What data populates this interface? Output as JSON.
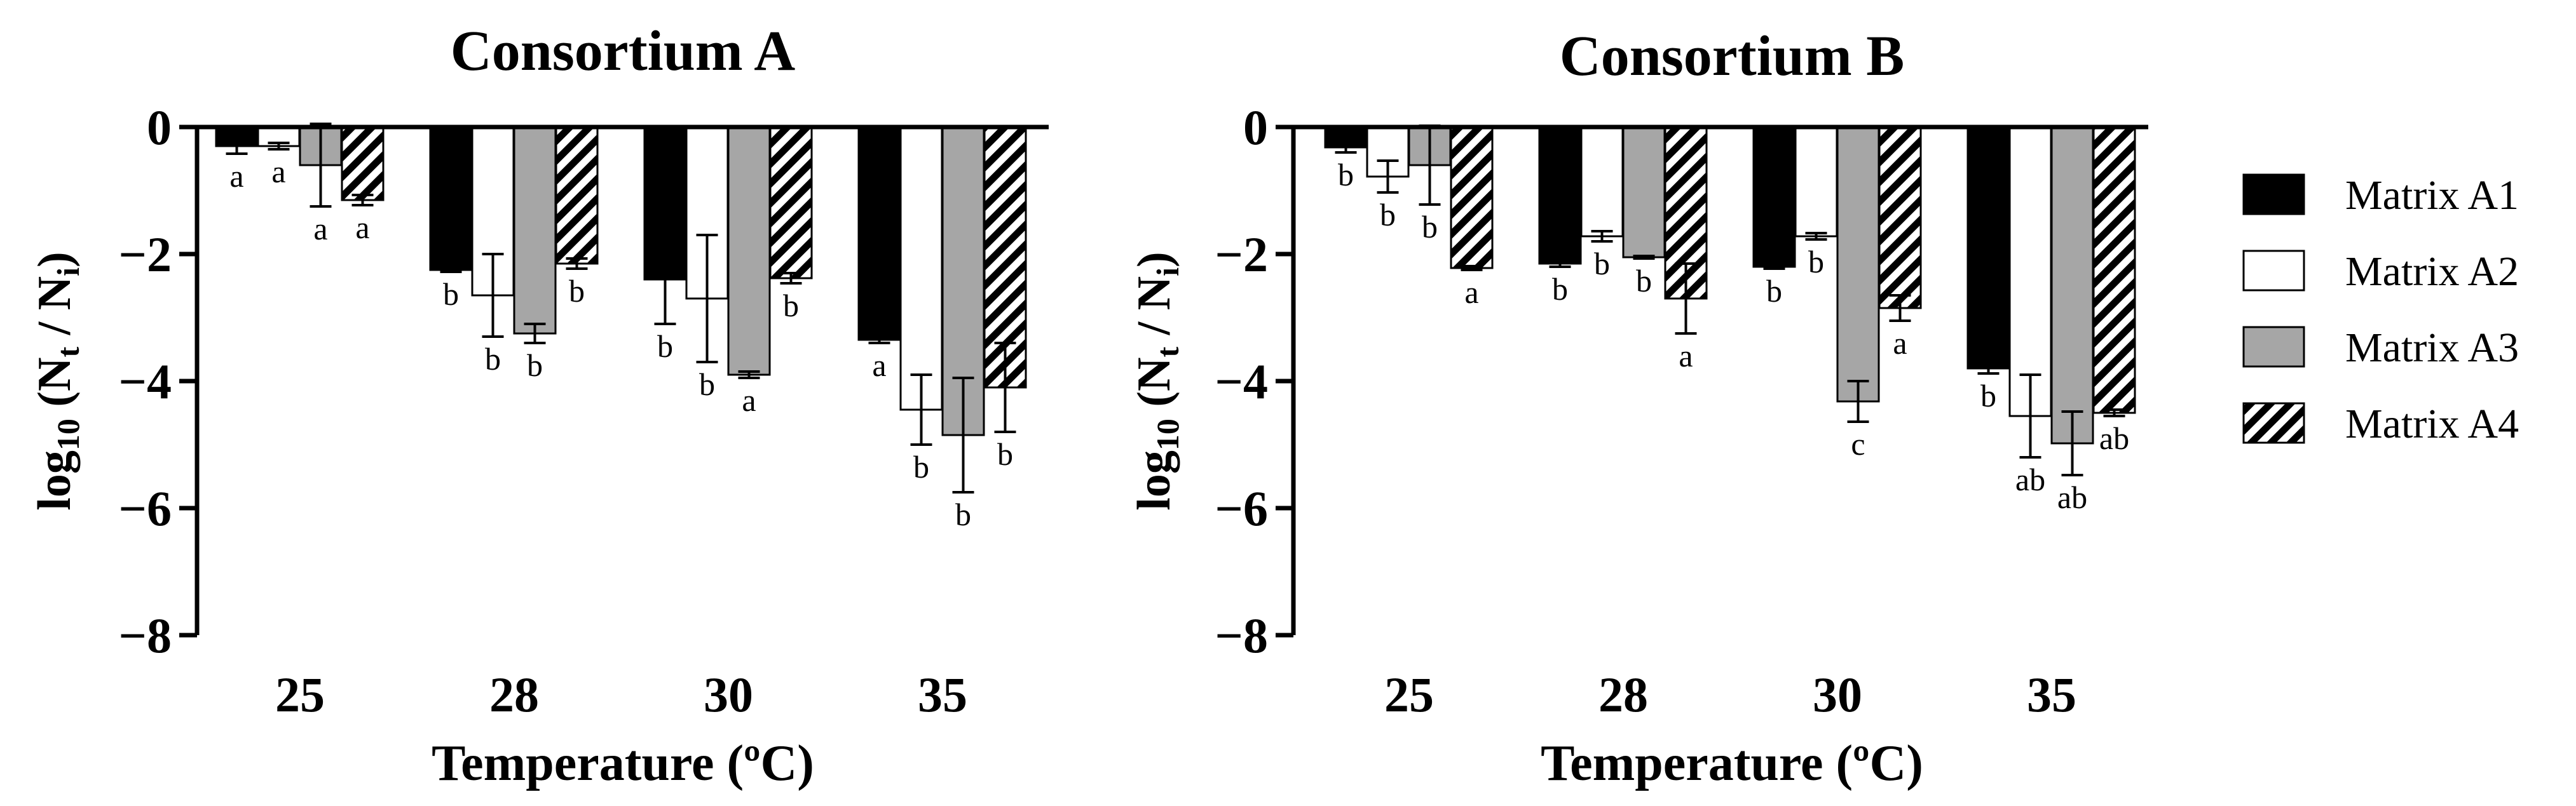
{
  "figure": {
    "legend": [
      {
        "label": "Matrix A1",
        "fill": "black"
      },
      {
        "label": "Matrix A2",
        "fill": "white"
      },
      {
        "label": "Matrix A3",
        "fill": "gray"
      },
      {
        "label": "Matrix A4",
        "fill": "hatched"
      }
    ],
    "colors": {
      "a1": "#000000",
      "a2": "#ffffff",
      "a3": "#a6a6a6",
      "axis": "#000000"
    }
  },
  "chart_data": [
    {
      "type": "bar",
      "title": "Consortium A",
      "xlabel": "Temperature (ºC)",
      "ylabel_parts": [
        "log",
        "10",
        " (N",
        "t",
        " / N",
        "i",
        ")"
      ],
      "ylim": [
        -8,
        0
      ],
      "yticks": [
        0,
        -2,
        -4,
        -6,
        -8
      ],
      "ytick_labels": [
        "0",
        "−2",
        "−4",
        "−6",
        "−8"
      ],
      "categories": [
        "25",
        "28",
        "30",
        "35"
      ],
      "series": [
        {
          "name": "Matrix A1",
          "values": [
            -0.3,
            -2.25,
            -2.4,
            -3.35
          ],
          "err": [
            0.12,
            0.03,
            0.7,
            0.05
          ],
          "letters": [
            "a",
            "b",
            "b",
            "a"
          ]
        },
        {
          "name": "Matrix A2",
          "values": [
            -0.3,
            -2.65,
            -2.7,
            -4.45
          ],
          "err": [
            0.05,
            0.65,
            1.0,
            0.55
          ],
          "letters": [
            "a",
            "b",
            "b",
            "b"
          ]
        },
        {
          "name": "Matrix A3",
          "values": [
            -0.6,
            -3.25,
            -3.9,
            -4.85
          ],
          "err": [
            0.65,
            0.15,
            0.05,
            0.9
          ],
          "letters": [
            "a",
            "b",
            "a",
            "b"
          ]
        },
        {
          "name": "Matrix A4",
          "values": [
            -1.15,
            -2.15,
            -2.38,
            -4.1
          ],
          "err": [
            0.08,
            0.08,
            0.08,
            0.7
          ],
          "letters": [
            "a",
            "b",
            "b",
            "b"
          ]
        }
      ]
    },
    {
      "type": "bar",
      "title": "Consortium B",
      "xlabel": "Temperature (ºC)",
      "ylabel_parts": [
        "log",
        "10",
        " (N",
        "t",
        " / N",
        "i",
        ")"
      ],
      "ylim": [
        -8,
        0
      ],
      "yticks": [
        0,
        -2,
        -4,
        -6,
        -8
      ],
      "ytick_labels": [
        "0",
        "−2",
        "−4",
        "−6",
        "−8"
      ],
      "categories": [
        "25",
        "28",
        "30",
        "35"
      ],
      "series": [
        {
          "name": "Matrix A1",
          "values": [
            -0.32,
            -2.15,
            -2.2,
            -3.8
          ],
          "err": [
            0.08,
            0.05,
            0.03,
            0.08
          ],
          "letters": [
            "b",
            "b",
            "b",
            "b"
          ]
        },
        {
          "name": "Matrix A2",
          "values": [
            -0.78,
            -1.72,
            -1.72,
            -4.55
          ],
          "err": [
            0.25,
            0.08,
            0.05,
            0.65
          ],
          "letters": [
            "b",
            "b",
            "b",
            "ab"
          ]
        },
        {
          "name": "Matrix A3",
          "values": [
            -0.6,
            -2.05,
            -4.32,
            -4.98
          ],
          "err": [
            0.62,
            0.02,
            0.32,
            0.5
          ],
          "letters": [
            "b",
            "b",
            "c",
            "ab"
          ]
        },
        {
          "name": "Matrix A4",
          "values": [
            -2.22,
            -2.7,
            -2.85,
            -4.5
          ],
          "err": [
            0.03,
            0.55,
            0.2,
            0.05
          ],
          "letters": [
            "a",
            "a",
            "a",
            "ab"
          ]
        }
      ]
    }
  ]
}
